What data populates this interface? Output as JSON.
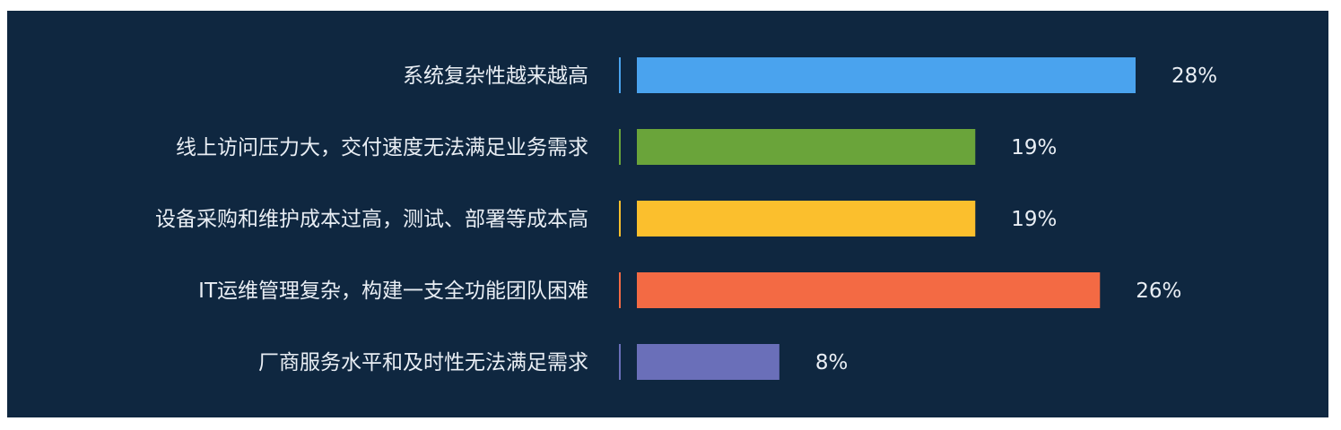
{
  "chart_data": {
    "type": "bar",
    "orientation": "horizontal",
    "categories": [
      "系统复杂性越来越高",
      "线上访问压力大，交付速度无法满足业务需求",
      "设备采购和维护成本过高，测试、部署等成本高",
      "IT运维管理复杂，构建一支全功能团队困难",
      "厂商服务水平和及时性无法满足需求"
    ],
    "values": [
      28,
      19,
      19,
      26,
      8
    ],
    "value_labels": [
      "28%",
      "19%",
      "19%",
      "26%",
      "8%"
    ],
    "unit": "%",
    "colors": [
      "#4aa3ee",
      "#6aa43a",
      "#fbbf2d",
      "#f36a44",
      "#6a6fb9"
    ],
    "background": "#0f2740",
    "xlim": [
      0,
      28
    ],
    "grid": false,
    "legend": "none"
  }
}
